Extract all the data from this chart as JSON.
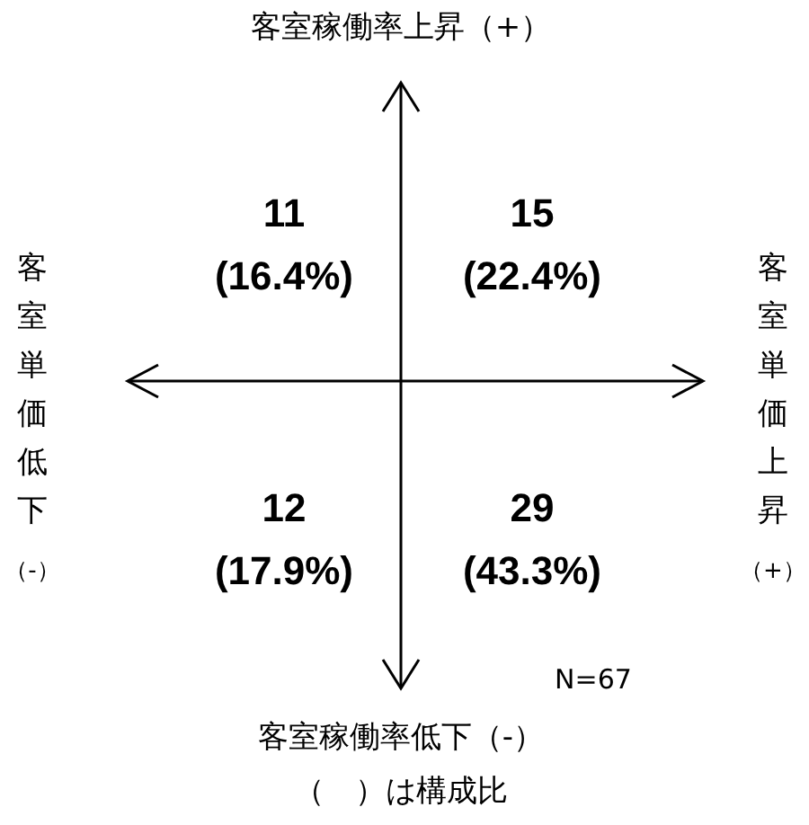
{
  "chart_data": {
    "type": "heatmap",
    "categories": [
      "客室単価低下（-）",
      "客室単価上昇（+）"
    ],
    "y_categories": [
      "客室稼働率上昇（+）",
      "客室稼働率低下（-）"
    ],
    "cells": [
      [
        11,
        15
      ],
      [
        12,
        29
      ]
    ],
    "data_labels": true,
    "annotations": [
      "(16.4%)",
      "(22.4%)",
      "(17.9%)",
      "(43.3%)",
      "N=67",
      "（　）は構成比"
    ]
  }
}
